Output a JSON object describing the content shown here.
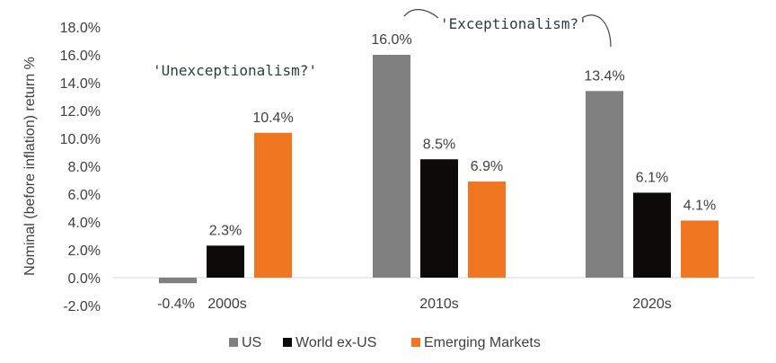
{
  "chart_data": {
    "type": "bar",
    "ylabel": "Nominal (before inflation) return %",
    "ylim": [
      -2,
      18
    ],
    "y_ticks": [
      "-2.0%",
      "0.0%",
      "2.0%",
      "4.0%",
      "6.0%",
      "8.0%",
      "10.0%",
      "12.0%",
      "14.0%",
      "16.0%",
      "18.0%"
    ],
    "y_tick_values": [
      -2,
      0,
      2,
      4,
      6,
      8,
      10,
      12,
      14,
      16,
      18
    ],
    "categories": [
      "2000s",
      "2010s",
      "2020s"
    ],
    "series": [
      {
        "name": "US",
        "color": "#808080",
        "values": [
          -0.4,
          16.0,
          13.4
        ],
        "labels": [
          "-0.4%",
          "16.0%",
          "13.4%"
        ]
      },
      {
        "name": "World ex-US",
        "color": "#0d0a0a",
        "values": [
          2.3,
          8.5,
          6.1
        ],
        "labels": [
          "2.3%",
          "8.5%",
          "6.1%"
        ]
      },
      {
        "name": "Emerging Markets",
        "color": "#f07622",
        "values": [
          10.4,
          6.9,
          4.1
        ],
        "labels": [
          "10.4%",
          "6.9%",
          "4.1%"
        ]
      }
    ],
    "grid": false,
    "legend_position": "bottom",
    "annotations": [
      "'Unexceptionalism?'",
      "'Exceptionalism?'"
    ]
  }
}
